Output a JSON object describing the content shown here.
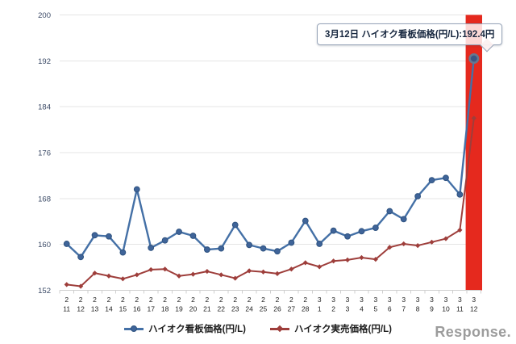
{
  "tooltip": {
    "text": "3月12日 ハイオク看板価格(円/L):192.4円"
  },
  "logo": {
    "text": "Response."
  },
  "chart_data": {
    "type": "line",
    "title": "",
    "xlabel": "",
    "ylabel": "",
    "categories": [
      "2/11",
      "2/12",
      "2/13",
      "2/14",
      "2/15",
      "2/16",
      "2/17",
      "2/18",
      "2/19",
      "2/20",
      "2/21",
      "2/22",
      "2/23",
      "2/24",
      "2/25",
      "2/26",
      "2/27",
      "2/28",
      "3/1",
      "3/2",
      "3/3",
      "3/4",
      "3/5",
      "3/6",
      "3/7",
      "3/8",
      "3/9",
      "3/10",
      "3/11",
      "3/12"
    ],
    "series": [
      {
        "name": "ハイオク看板価格(円/L)",
        "marker": "circle",
        "color": "#4470a6",
        "marker_fill": "#3f6499",
        "marker_stroke": "#2f5380",
        "values": [
          160.1,
          157.8,
          161.6,
          161.4,
          158.6,
          169.6,
          159.4,
          160.7,
          162.2,
          161.5,
          159.1,
          159.3,
          163.4,
          159.9,
          159.3,
          158.8,
          160.3,
          164.1,
          160.1,
          162.4,
          161.4,
          162.3,
          162.9,
          165.8,
          164.4,
          168.4,
          171.2,
          171.6,
          168.7,
          192.4
        ]
      },
      {
        "name": "ハイオク実売価格(円/L)",
        "marker": "diamond",
        "color": "#9e3e3b",
        "marker_fill": "#9e3e3b",
        "marker_stroke": "#8a3533",
        "values": [
          153.0,
          152.7,
          155.0,
          154.5,
          154.0,
          154.7,
          155.6,
          155.7,
          154.5,
          154.8,
          155.3,
          154.7,
          154.1,
          155.4,
          155.2,
          154.9,
          155.7,
          156.8,
          156.1,
          157.1,
          157.3,
          157.7,
          157.4,
          159.5,
          160.1,
          159.8,
          160.4,
          161.0,
          162.5,
          182.0
        ]
      }
    ],
    "ylim": [
      152,
      200
    ],
    "yticks": [
      152,
      160,
      168,
      176,
      184,
      192,
      200
    ],
    "grid": true,
    "legend_position": "bottom",
    "highlight": {
      "category": "3/12",
      "series": "ハイオク看板価格(円/L)",
      "value": 192.4,
      "band_color": "#e5291e"
    }
  },
  "style": {
    "grid_color": "#e4e4e4",
    "axis_color": "#cfcfcf",
    "ytick_label_color": "#3b4a66",
    "xtick_label_color": "#222222",
    "highlight_ring_color": "#66778f",
    "highlight_fill_color": "#3a5684"
  }
}
